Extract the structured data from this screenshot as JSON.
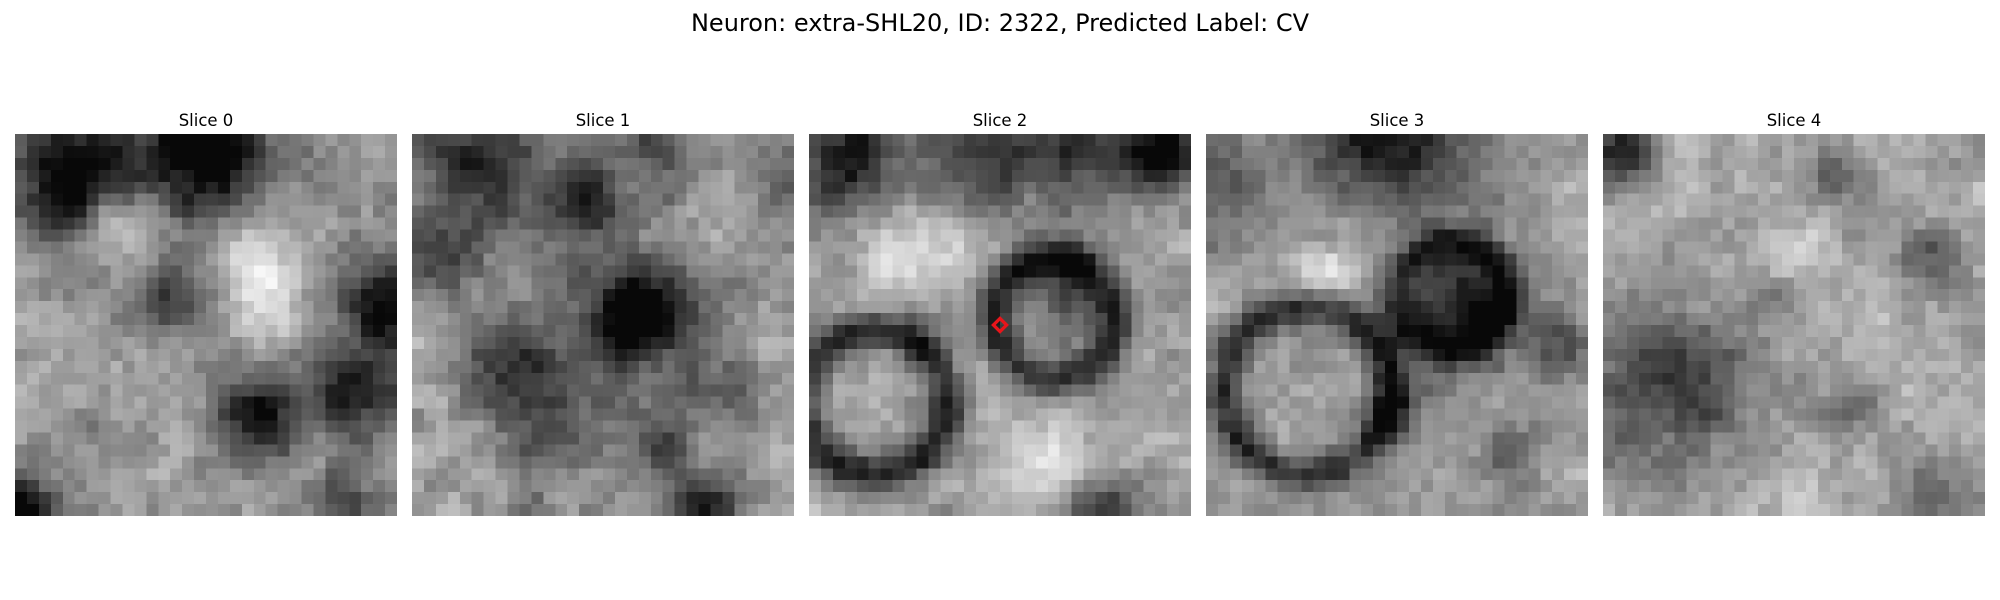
{
  "figure": {
    "title": "Neuron: extra-SHL20, ID: 2322, Predicted Label: CV"
  },
  "panels": [
    {
      "title": "Slice 0",
      "content": "grayscale-microscopy-patch"
    },
    {
      "title": "Slice 1",
      "content": "grayscale-microscopy-patch"
    },
    {
      "title": "Slice 2",
      "content": "grayscale-microscopy-patch",
      "marker": {
        "shape": "diamond",
        "color": "#e8151b"
      }
    },
    {
      "title": "Slice 3",
      "content": "grayscale-microscopy-patch"
    },
    {
      "title": "Slice 4",
      "content": "grayscale-microscopy-patch"
    }
  ],
  "colors": {
    "background": "#ffffff",
    "marker": "#e8151b"
  }
}
